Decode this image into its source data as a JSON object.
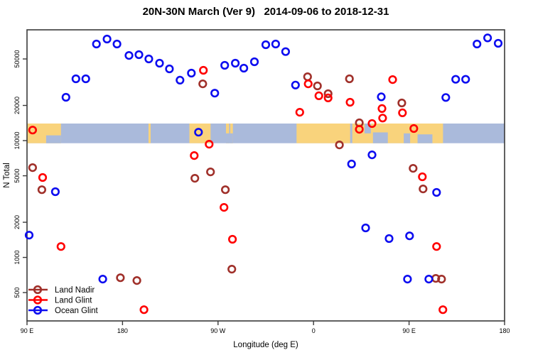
{
  "title": "20N-30N March (Ver 9)   2014-09-06 to 2018-12-31",
  "chart_data": {
    "type": "scatter",
    "title": "20N-30N March (Ver 9)   2014-09-06 to 2018-12-31",
    "xlabel": "Longitude (deg E)",
    "ylabel": "N Total",
    "x_axis_note": "longitude wraps eastward: 90E to 180 to 90W to 0 to 90E to 180",
    "y_scale": "log10",
    "xlim": [
      90,
      540
    ],
    "ylim_log": [
      286,
      88800
    ],
    "x_ticks": [
      {
        "value": 90,
        "label": "90 E"
      },
      {
        "value": 180,
        "label": "180"
      },
      {
        "value": 270,
        "label": "90 W"
      },
      {
        "value": 360,
        "label": "0"
      },
      {
        "value": 450,
        "label": "90 E"
      },
      {
        "value": 540,
        "label": "180"
      }
    ],
    "y_ticks": [
      {
        "value": 500,
        "label": "500"
      },
      {
        "value": 1000,
        "label": "1000"
      },
      {
        "value": 2000,
        "label": "2000"
      },
      {
        "value": 5000,
        "label": "5000"
      },
      {
        "value": 10000,
        "label": "10000"
      },
      {
        "value": 20000,
        "label": "20000"
      },
      {
        "value": 50000,
        "label": "50000"
      }
    ],
    "map_band": {
      "n_range": [
        9500,
        14000
      ],
      "ocean_color": "#AABADB",
      "land_color": "#F9D37C",
      "land_segments": [
        [
          90,
          122
        ],
        [
          204.5,
          206.5
        ],
        [
          243,
          263
        ],
        [
          277.5,
          280.5
        ],
        [
          281.5,
          284
        ],
        [
          344,
          394.5
        ],
        [
          396.5,
          482
        ]
      ],
      "ocean_bites": [
        {
          "from": 108,
          "to": 122,
          "anchor": "bottom",
          "frac": 0.4
        },
        {
          "from": 277.5,
          "to": 284,
          "anchor": "bottom",
          "frac": 0.5
        },
        {
          "from": 408,
          "to": 414,
          "anchor": "top",
          "frac": 0.5
        },
        {
          "from": 416,
          "to": 430,
          "anchor": "bottom",
          "frac": 0.55
        },
        {
          "from": 445,
          "to": 451,
          "anchor": "bottom",
          "frac": 0.5
        },
        {
          "from": 458,
          "to": 472,
          "anchor": "bottom",
          "frac": 0.45
        }
      ]
    },
    "series": [
      {
        "name": "Land Nadir",
        "color": "#A0302A",
        "points": [
          {
            "lon": 95.3,
            "n": 5870
          },
          {
            "lon": 104.0,
            "n": 3800
          },
          {
            "lon": 178.0,
            "n": 670
          },
          {
            "lon": 193.5,
            "n": 634
          },
          {
            "lon": 248.2,
            "n": 4760
          },
          {
            "lon": 255.6,
            "n": 30600
          },
          {
            "lon": 262.9,
            "n": 5400
          },
          {
            "lon": 276.9,
            "n": 3800
          },
          {
            "lon": 283.0,
            "n": 793
          },
          {
            "lon": 354.4,
            "n": 35200
          },
          {
            "lon": 363.7,
            "n": 29400
          },
          {
            "lon": 373.7,
            "n": 25200
          },
          {
            "lon": 384.4,
            "n": 9190
          },
          {
            "lon": 393.8,
            "n": 33800
          },
          {
            "lon": 403.1,
            "n": 14200
          },
          {
            "lon": 443.2,
            "n": 21000
          },
          {
            "lon": 453.8,
            "n": 5790
          },
          {
            "lon": 463.2,
            "n": 3860
          },
          {
            "lon": 475.2,
            "n": 661
          },
          {
            "lon": 480.6,
            "n": 652
          }
        ]
      },
      {
        "name": "Land Glint",
        "color": "#FF0000",
        "points": [
          {
            "lon": 95.3,
            "n": 12300
          },
          {
            "lon": 104.7,
            "n": 4830
          },
          {
            "lon": 122.0,
            "n": 1240
          },
          {
            "lon": 200.2,
            "n": 357
          },
          {
            "lon": 247.6,
            "n": 7450
          },
          {
            "lon": 256.2,
            "n": 40000
          },
          {
            "lon": 261.6,
            "n": 9320
          },
          {
            "lon": 275.6,
            "n": 2680
          },
          {
            "lon": 283.6,
            "n": 1430
          },
          {
            "lon": 347.0,
            "n": 17500
          },
          {
            "lon": 355.0,
            "n": 30600
          },
          {
            "lon": 365.0,
            "n": 24200
          },
          {
            "lon": 373.7,
            "n": 23200
          },
          {
            "lon": 394.4,
            "n": 21300
          },
          {
            "lon": 403.1,
            "n": 12500
          },
          {
            "lon": 415.1,
            "n": 14000
          },
          {
            "lon": 424.5,
            "n": 18800
          },
          {
            "lon": 425.1,
            "n": 15600
          },
          {
            "lon": 434.5,
            "n": 33300
          },
          {
            "lon": 443.8,
            "n": 17300
          },
          {
            "lon": 454.5,
            "n": 12700
          },
          {
            "lon": 462.5,
            "n": 4900
          },
          {
            "lon": 475.9,
            "n": 1240
          },
          {
            "lon": 481.9,
            "n": 357
          }
        ]
      },
      {
        "name": "Ocean Glint",
        "color": "#0D0DF0",
        "points": [
          {
            "lon": 92.0,
            "n": 1550
          },
          {
            "lon": 116.7,
            "n": 3650
          },
          {
            "lon": 126.7,
            "n": 23500
          },
          {
            "lon": 136.1,
            "n": 33800
          },
          {
            "lon": 145.4,
            "n": 33800
          },
          {
            "lon": 155.4,
            "n": 67100
          },
          {
            "lon": 161.4,
            "n": 652
          },
          {
            "lon": 165.4,
            "n": 74000
          },
          {
            "lon": 174.8,
            "n": 67100
          },
          {
            "lon": 186.1,
            "n": 53600
          },
          {
            "lon": 195.5,
            "n": 54400
          },
          {
            "lon": 204.8,
            "n": 50000
          },
          {
            "lon": 214.9,
            "n": 46000
          },
          {
            "lon": 224.2,
            "n": 41100
          },
          {
            "lon": 234.2,
            "n": 32900
          },
          {
            "lon": 244.9,
            "n": 37800
          },
          {
            "lon": 251.6,
            "n": 11800
          },
          {
            "lon": 266.9,
            "n": 25500
          },
          {
            "lon": 276.3,
            "n": 44100
          },
          {
            "lon": 286.3,
            "n": 46000
          },
          {
            "lon": 294.3,
            "n": 41700
          },
          {
            "lon": 304.3,
            "n": 47300
          },
          {
            "lon": 315.0,
            "n": 66200
          },
          {
            "lon": 324.3,
            "n": 67100
          },
          {
            "lon": 333.7,
            "n": 57800
          },
          {
            "lon": 343.0,
            "n": 29900
          },
          {
            "lon": 395.8,
            "n": 6300
          },
          {
            "lon": 409.1,
            "n": 1790
          },
          {
            "lon": 415.1,
            "n": 7550
          },
          {
            "lon": 423.8,
            "n": 23700
          },
          {
            "lon": 431.2,
            "n": 1450
          },
          {
            "lon": 448.5,
            "n": 652
          },
          {
            "lon": 450.5,
            "n": 1530
          },
          {
            "lon": 468.6,
            "n": 652
          },
          {
            "lon": 475.9,
            "n": 3600
          },
          {
            "lon": 484.6,
            "n": 23400
          },
          {
            "lon": 493.9,
            "n": 33500
          },
          {
            "lon": 503.3,
            "n": 33500
          },
          {
            "lon": 514.0,
            "n": 67100
          },
          {
            "lon": 524.0,
            "n": 75700
          },
          {
            "lon": 534.0,
            "n": 68100
          }
        ]
      }
    ],
    "legend_position": "bottom-left",
    "grid": false
  }
}
